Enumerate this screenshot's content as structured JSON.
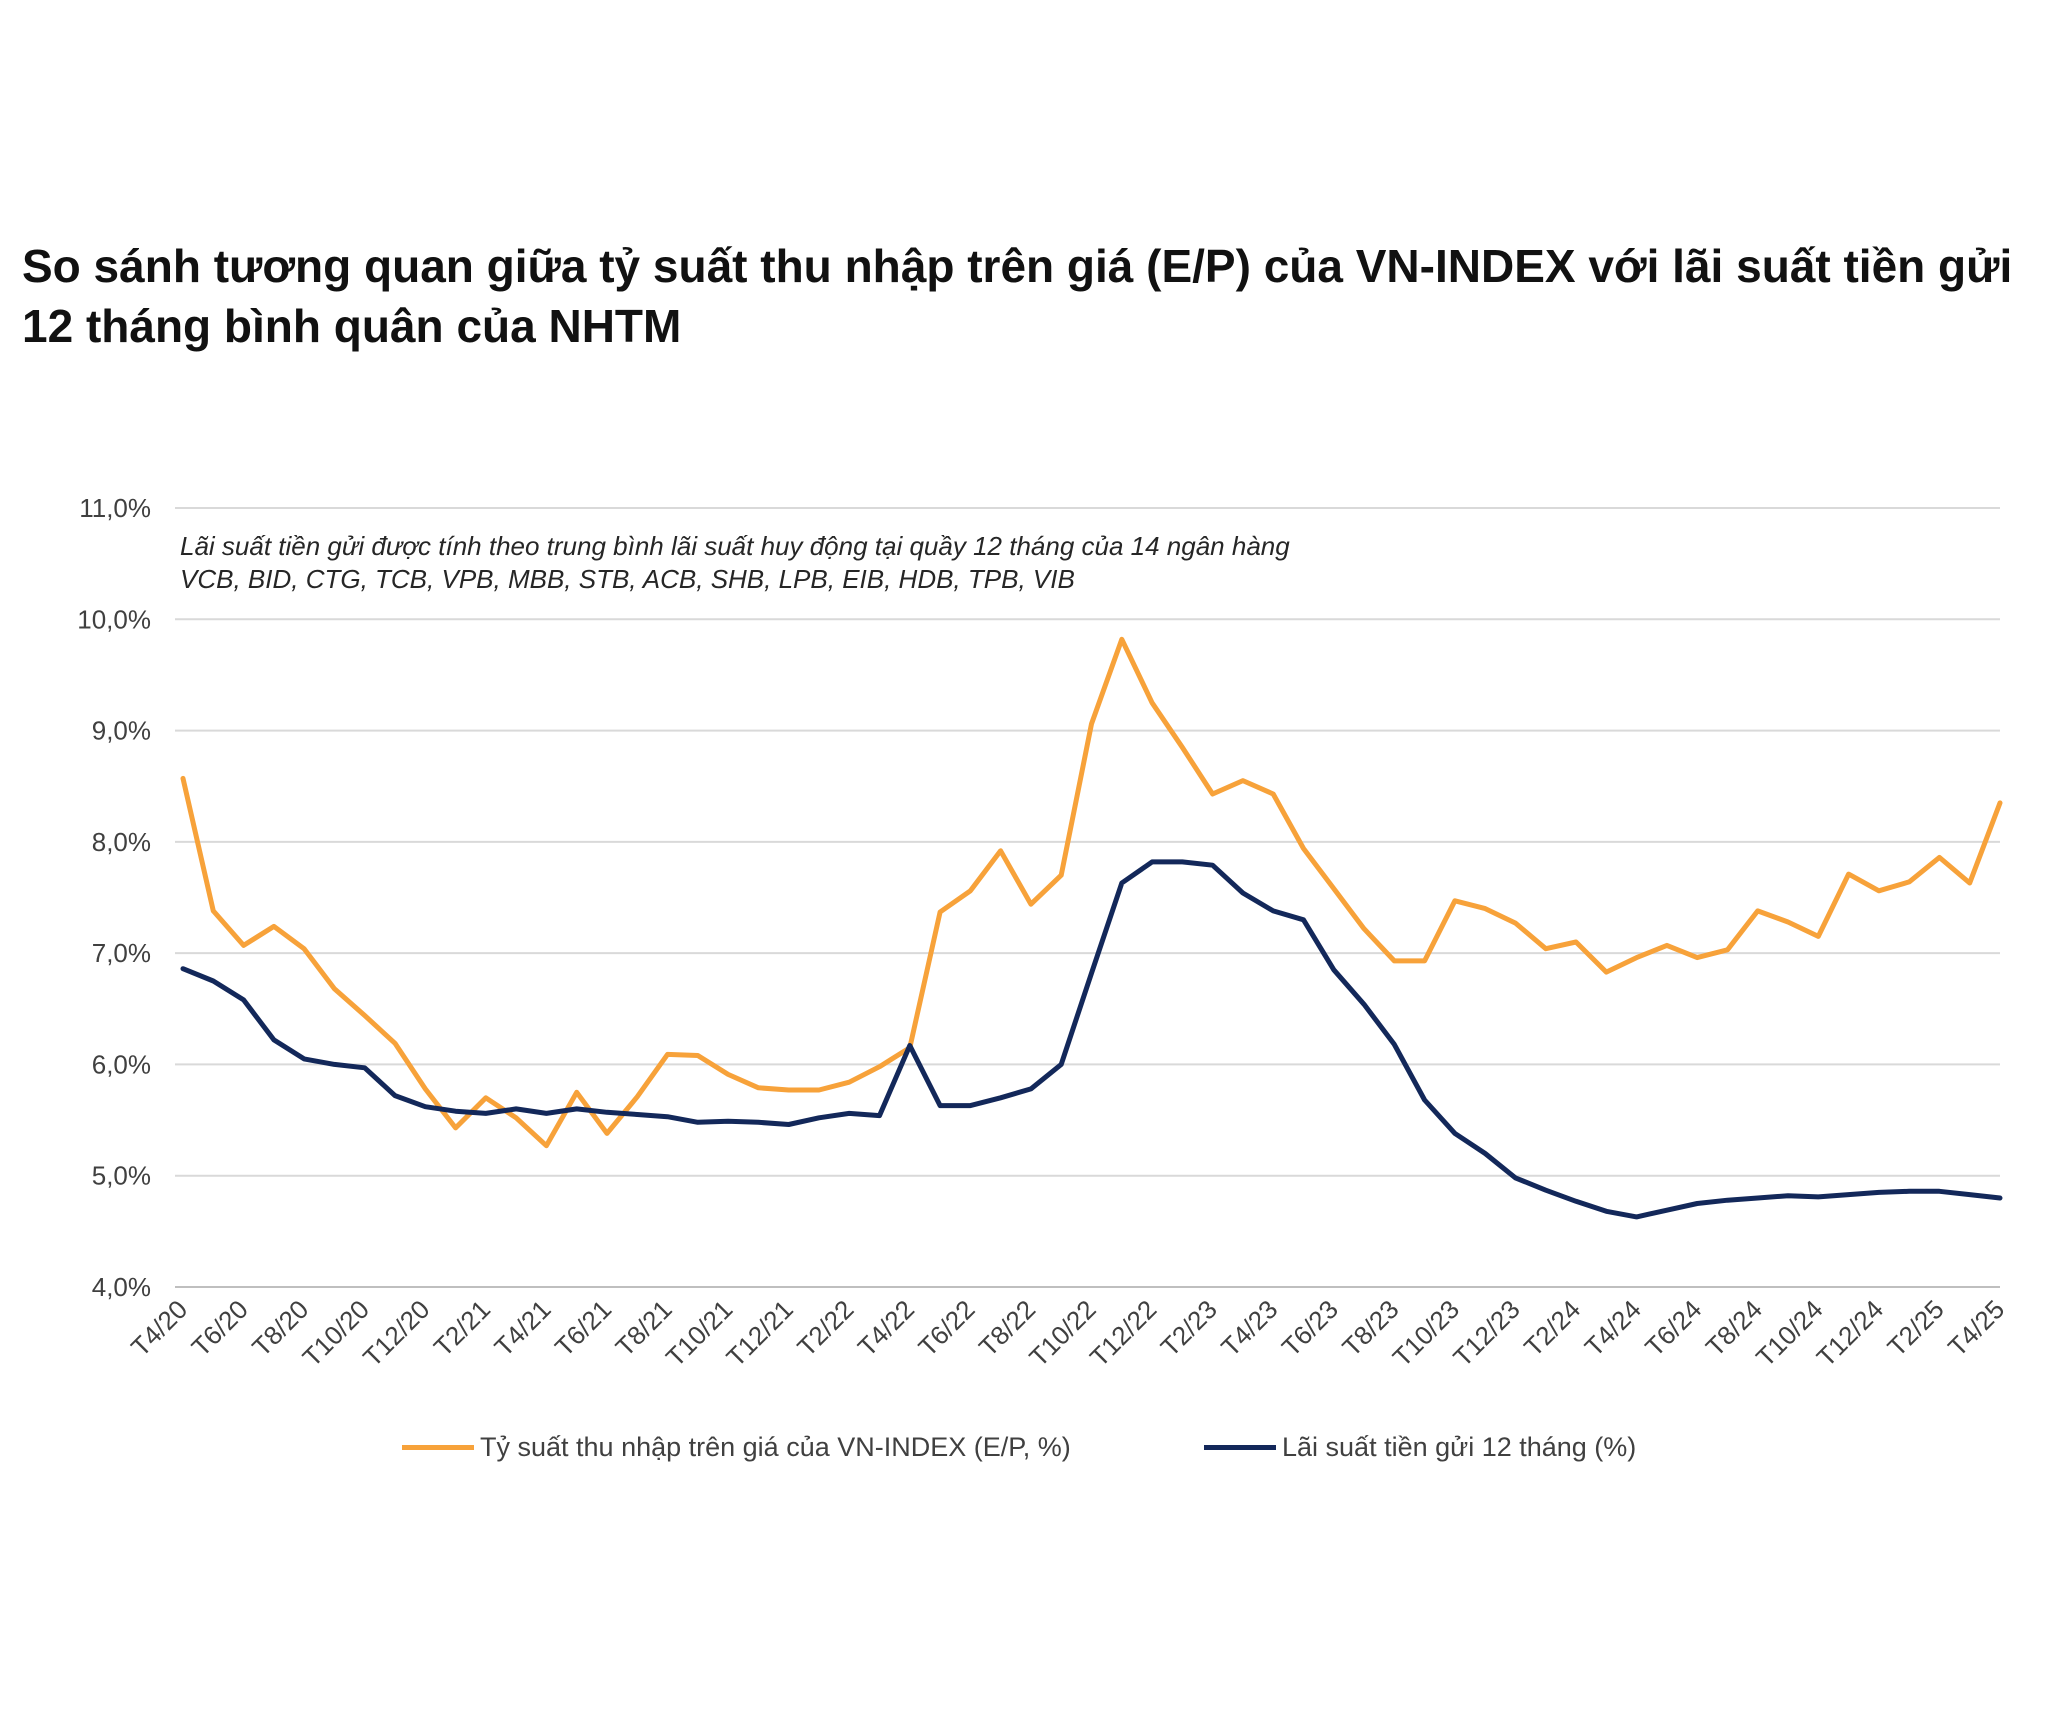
{
  "title": "So sánh tương quan giữa tỷ suất thu nhập trên giá (E/P) của VN-INDEX với lãi suất tiền gửi 12 tháng bình quân của NHTM",
  "chart_data": {
    "type": "line",
    "title": "So sánh tương quan giữa tỷ suất thu nhập trên giá (E/P) của VN-INDEX với lãi suất tiền gửi 12 tháng bình quân của NHTM",
    "annotation": [
      "Lãi suất tiền gửi được tính theo trung bình lãi suất huy động tại quầy 12 tháng của 14 ngân hàng",
      "VCB, BID, CTG, TCB, VPB, MBB, STB, ACB, SHB, LPB, EIB, HDB, TPB, VIB"
    ],
    "xlabel": "",
    "ylabel": "",
    "ylim": [
      4.0,
      11.0
    ],
    "yticks": [
      4.0,
      5.0,
      6.0,
      7.0,
      8.0,
      9.0,
      10.0,
      11.0
    ],
    "ytick_labels": [
      "4,0%",
      "5,0%",
      "6,0%",
      "7,0%",
      "8,0%",
      "9,0%",
      "10,0%",
      "11,0%"
    ],
    "grid": true,
    "legend_position": "bottom",
    "x": [
      "T4/20",
      "T5/20",
      "T6/20",
      "T7/20",
      "T8/20",
      "T9/20",
      "T10/20",
      "T11/20",
      "T12/20",
      "T1/21",
      "T2/21",
      "T3/21",
      "T4/21",
      "T5/21",
      "T6/21",
      "T7/21",
      "T8/21",
      "T9/21",
      "T10/21",
      "T11/21",
      "T12/21",
      "T1/22",
      "T2/22",
      "T3/22",
      "T4/22",
      "T5/22",
      "T6/22",
      "T7/22",
      "T8/22",
      "T9/22",
      "T10/22",
      "T11/22",
      "T12/22",
      "T1/23",
      "T2/23",
      "T3/23",
      "T4/23",
      "T5/23",
      "T6/23",
      "T7/23",
      "T8/23",
      "T9/23",
      "T10/23",
      "T11/23",
      "T12/23",
      "T1/24",
      "T2/24",
      "T3/24",
      "T4/24",
      "T5/24",
      "T6/24",
      "T7/24",
      "T8/24",
      "T9/24",
      "T10/24",
      "T11/24",
      "T12/24",
      "T1/25",
      "T2/25",
      "T3/25",
      "T4/25"
    ],
    "xtick_labels": [
      "T4/20",
      "T6/20",
      "T8/20",
      "T10/20",
      "T12/20",
      "T2/21",
      "T4/21",
      "T6/21",
      "T8/21",
      "T10/21",
      "T12/21",
      "T2/22",
      "T4/22",
      "T6/22",
      "T8/22",
      "T10/22",
      "T12/22",
      "T2/23",
      "T4/23",
      "T6/23",
      "T8/23",
      "T10/23",
      "T12/23",
      "T2/24",
      "T4/24",
      "T6/24",
      "T8/24",
      "T10/24",
      "T12/24",
      "T2/25",
      "T4/25"
    ],
    "series": [
      {
        "name": "Tỷ suất thu nhập trên giá của VN-INDEX (E/P, %)",
        "color": "#f7a23a",
        "values": [
          8.57,
          7.38,
          7.07,
          7.24,
          7.04,
          6.68,
          6.44,
          6.19,
          5.78,
          5.43,
          5.7,
          5.52,
          5.27,
          5.75,
          5.38,
          5.71,
          6.09,
          6.08,
          5.91,
          5.79,
          5.77,
          5.77,
          5.84,
          5.98,
          6.15,
          7.37,
          7.56,
          7.92,
          7.44,
          7.7,
          9.06,
          9.82,
          9.25,
          8.85,
          8.43,
          8.55,
          8.43,
          7.94,
          7.58,
          7.22,
          6.93,
          6.93,
          7.47,
          7.4,
          7.27,
          7.04,
          7.1,
          6.83,
          6.96,
          7.07,
          6.96,
          7.03,
          7.38,
          7.28,
          7.15,
          7.71,
          7.56,
          7.64,
          7.86,
          7.63,
          8.35
        ]
      },
      {
        "name": "Lãi suất tiền gửi 12 tháng (%)",
        "color": "#13285a",
        "values": [
          6.86,
          6.75,
          6.58,
          6.22,
          6.05,
          6.0,
          5.97,
          5.72,
          5.62,
          5.58,
          5.56,
          5.6,
          5.56,
          5.6,
          5.57,
          5.55,
          5.53,
          5.48,
          5.49,
          5.48,
          5.46,
          5.52,
          5.56,
          5.54,
          6.17,
          5.63,
          5.63,
          5.7,
          5.78,
          6.0,
          6.82,
          7.63,
          7.82,
          7.82,
          7.79,
          7.54,
          7.38,
          7.3,
          6.85,
          6.54,
          6.18,
          5.68,
          5.38,
          5.2,
          4.98,
          4.87,
          4.77,
          4.68,
          4.63,
          4.69,
          4.75,
          4.78,
          4.8,
          4.82,
          4.81,
          4.83,
          4.85,
          4.86,
          4.86,
          4.83,
          4.8
        ]
      }
    ]
  }
}
